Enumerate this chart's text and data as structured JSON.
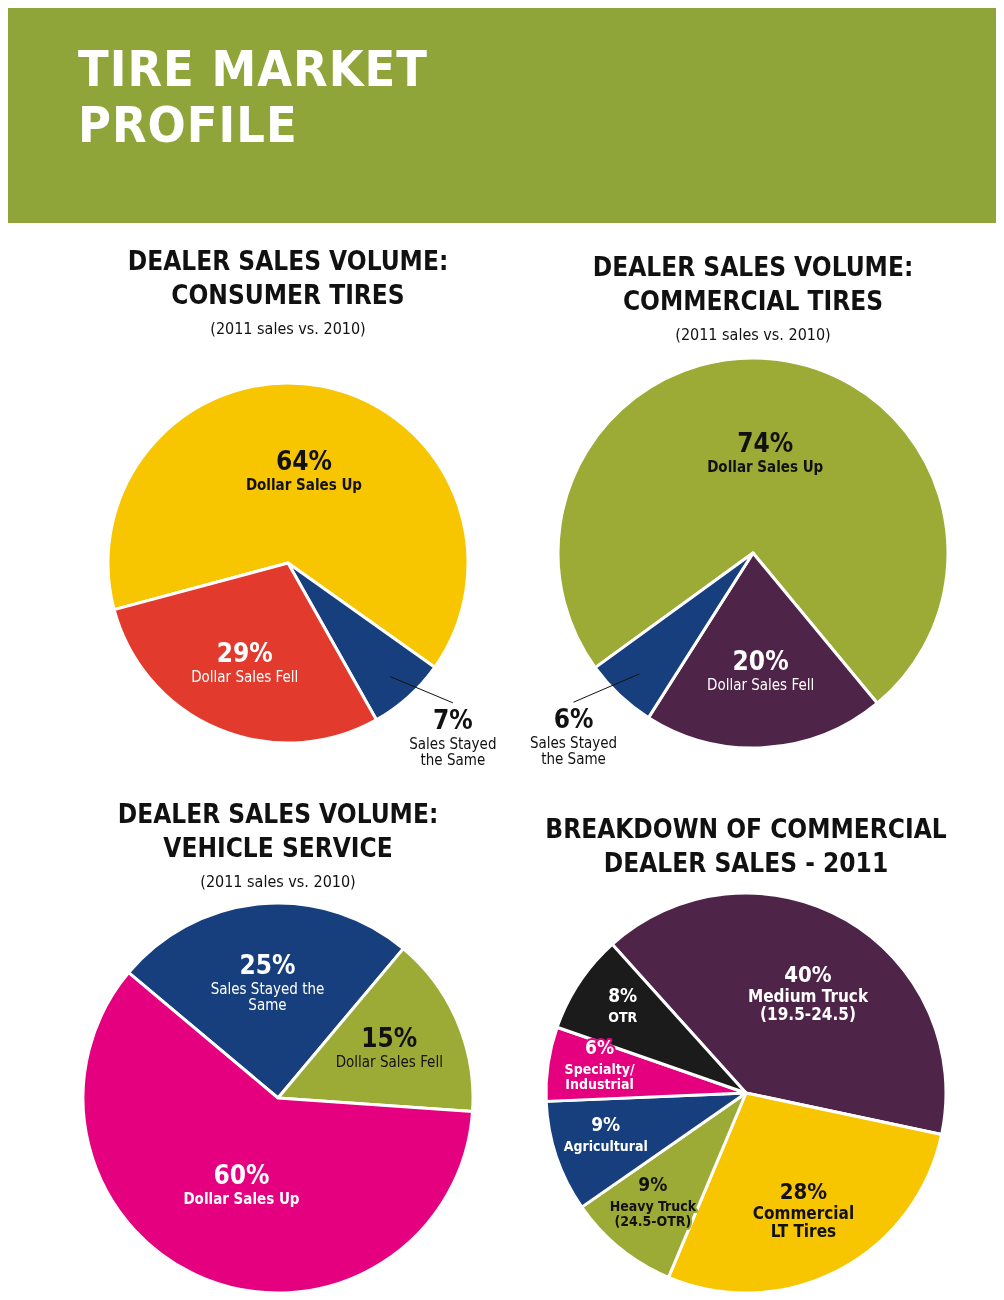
{
  "chart_data": [
    {
      "type": "other",
      "title": "TIRE MARKET PROFILE"
    },
    {
      "type": "pie",
      "title": "DEALER SALES VOLUME: CONSUMER TIRES",
      "subtitle": "(2011 sales vs. 2010)",
      "categories": [
        "Dollar Sales Up",
        "Sales Stayed the Same",
        "Dollar Sales Fell"
      ],
      "values": [
        64,
        7,
        29
      ],
      "value_labels": [
        "64%",
        "7%",
        "29%"
      ],
      "colors": [
        "#f7c600",
        "#173f7e",
        "#e23b2e"
      ]
    },
    {
      "type": "pie",
      "title": "DEALER SALES VOLUME: COMMERCIAL TIRES",
      "subtitle": "(2011 sales vs. 2010)",
      "categories": [
        "Dollar Sales Up",
        "Dollar Sales Fell",
        "Sales Stayed the Same"
      ],
      "values": [
        74,
        20,
        6
      ],
      "value_labels": [
        "74%",
        "20%",
        "6%"
      ],
      "colors": [
        "#9cab36",
        "#4f2449",
        "#173f7e"
      ]
    },
    {
      "type": "pie",
      "title": "DEALER SALES VOLUME: VEHICLE SERVICE",
      "subtitle": "(2011 sales vs. 2010)",
      "categories": [
        "Sales Stayed the Same",
        "Dollar Sales Fell",
        "Dollar Sales Up"
      ],
      "values": [
        25,
        15,
        60
      ],
      "value_labels": [
        "25%",
        "15%",
        "60%"
      ],
      "colors": [
        "#173f7e",
        "#9cab36",
        "#e4007f"
      ]
    },
    {
      "type": "pie",
      "title": "BREAKDOWN OF COMMERCIAL DEALER SALES - 2011",
      "categories": [
        "Medium Truck (19.5-24.5)",
        "Commercial LT Tires",
        "Heavy Truck (24.5-OTR)",
        "Agricultural",
        "Specialty/ Industrial",
        "OTR"
      ],
      "values": [
        40,
        28,
        9,
        9,
        6,
        8
      ],
      "value_labels": [
        "40%",
        "28%",
        "9%",
        "9%",
        "6%",
        "8%"
      ],
      "colors": [
        "#4f2449",
        "#f7c600",
        "#9cab36",
        "#173f7e",
        "#e4007f",
        "#1b1b1b"
      ]
    }
  ]
}
